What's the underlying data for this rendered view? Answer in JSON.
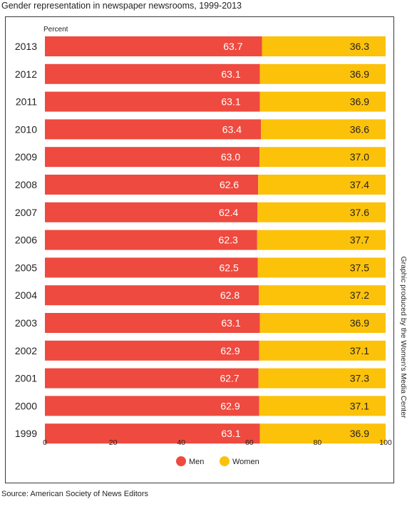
{
  "title": "Gender representation in newspaper newsrooms, 1999-2013",
  "source": "Source: American Society of News Editors",
  "side_credit": "Graphic produced by the Women's Media Center",
  "colors": {
    "men": "#ee4a3f",
    "women": "#fcc20a",
    "text": "#231f20",
    "label_on_men": "#ffffff",
    "label_on_women": "#231f20"
  },
  "chart_data": {
    "type": "bar",
    "orientation": "horizontal",
    "stacked": true,
    "title": "Gender representation in newspaper newsrooms, 1999-2013",
    "xlabel": "Percent",
    "ylabel": "",
    "xlim": [
      0,
      100
    ],
    "xticks": [
      0,
      20,
      40,
      60,
      80,
      100
    ],
    "grid": false,
    "legend": "bottom-center",
    "categories": [
      "2013",
      "2012",
      "2011",
      "2010",
      "2009",
      "2008",
      "2007",
      "2006",
      "2005",
      "2004",
      "2003",
      "2002",
      "2001",
      "2000",
      "1999"
    ],
    "series": [
      {
        "name": "Men",
        "color": "#ee4a3f",
        "values": [
          63.7,
          63.1,
          63.1,
          63.4,
          63.0,
          62.6,
          62.4,
          62.3,
          62.5,
          62.8,
          63.1,
          62.9,
          62.7,
          62.9,
          63.1
        ],
        "labels": [
          "63.7",
          "63.1",
          "63.1",
          "63.4",
          "63.0",
          "62.6",
          "62.4",
          "62.3",
          "62.5",
          "62.8",
          "63.1",
          "62.9",
          "62.7",
          "62.9",
          "63.1"
        ]
      },
      {
        "name": "Women",
        "color": "#fcc20a",
        "values": [
          36.3,
          36.9,
          36.9,
          36.6,
          37.0,
          37.4,
          37.6,
          37.7,
          37.5,
          37.2,
          36.9,
          37.1,
          37.3,
          37.1,
          36.9
        ],
        "labels": [
          "36.3",
          "36.9",
          "36.9",
          "36.6",
          "37.0",
          "37.4",
          "37.6",
          "37.7",
          "37.5",
          "37.2",
          "36.9",
          "37.1",
          "37.3",
          "37.1",
          "36.9"
        ]
      }
    ]
  }
}
